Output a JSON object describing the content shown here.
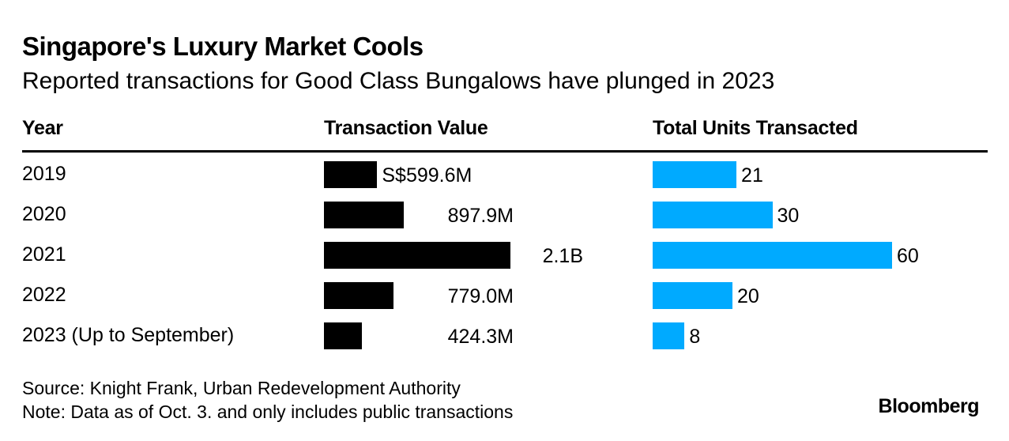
{
  "title": "Singapore's Luxury Market Cools",
  "subtitle": "Reported transactions for Good Class Bungalows have plunged in 2023",
  "footer": {
    "source": "Source: Knight Frank, Urban Redevelopment Authority",
    "note": "Note: Data as of Oct. 3. and only includes public transactions",
    "brand": "Bloomberg"
  },
  "chart_data": {
    "type": "table",
    "columns": [
      "Year",
      "Transaction Value",
      "Total Units Transacted"
    ],
    "rows": [
      {
        "year": "2019",
        "value": 599.6,
        "value_label": "S$599.6M",
        "units": 21,
        "units_label": "21"
      },
      {
        "year": "2020",
        "value": 897.9,
        "value_label": "897.9M",
        "units": 30,
        "units_label": "30"
      },
      {
        "year": "2021",
        "value": 2100,
        "value_label": "2.1B",
        "units": 60,
        "units_label": "60"
      },
      {
        "year": "2022",
        "value": 779.0,
        "value_label": "779.0M",
        "units": 20,
        "units_label": "20"
      },
      {
        "year": "2023 (Up to September)",
        "value": 424.3,
        "value_label": "424.3M",
        "units": 8,
        "units_label": "8"
      }
    ],
    "value_unit": "S$ millions",
    "colors": {
      "value_bar": "#000000",
      "units_bar": "#00aaff"
    }
  }
}
